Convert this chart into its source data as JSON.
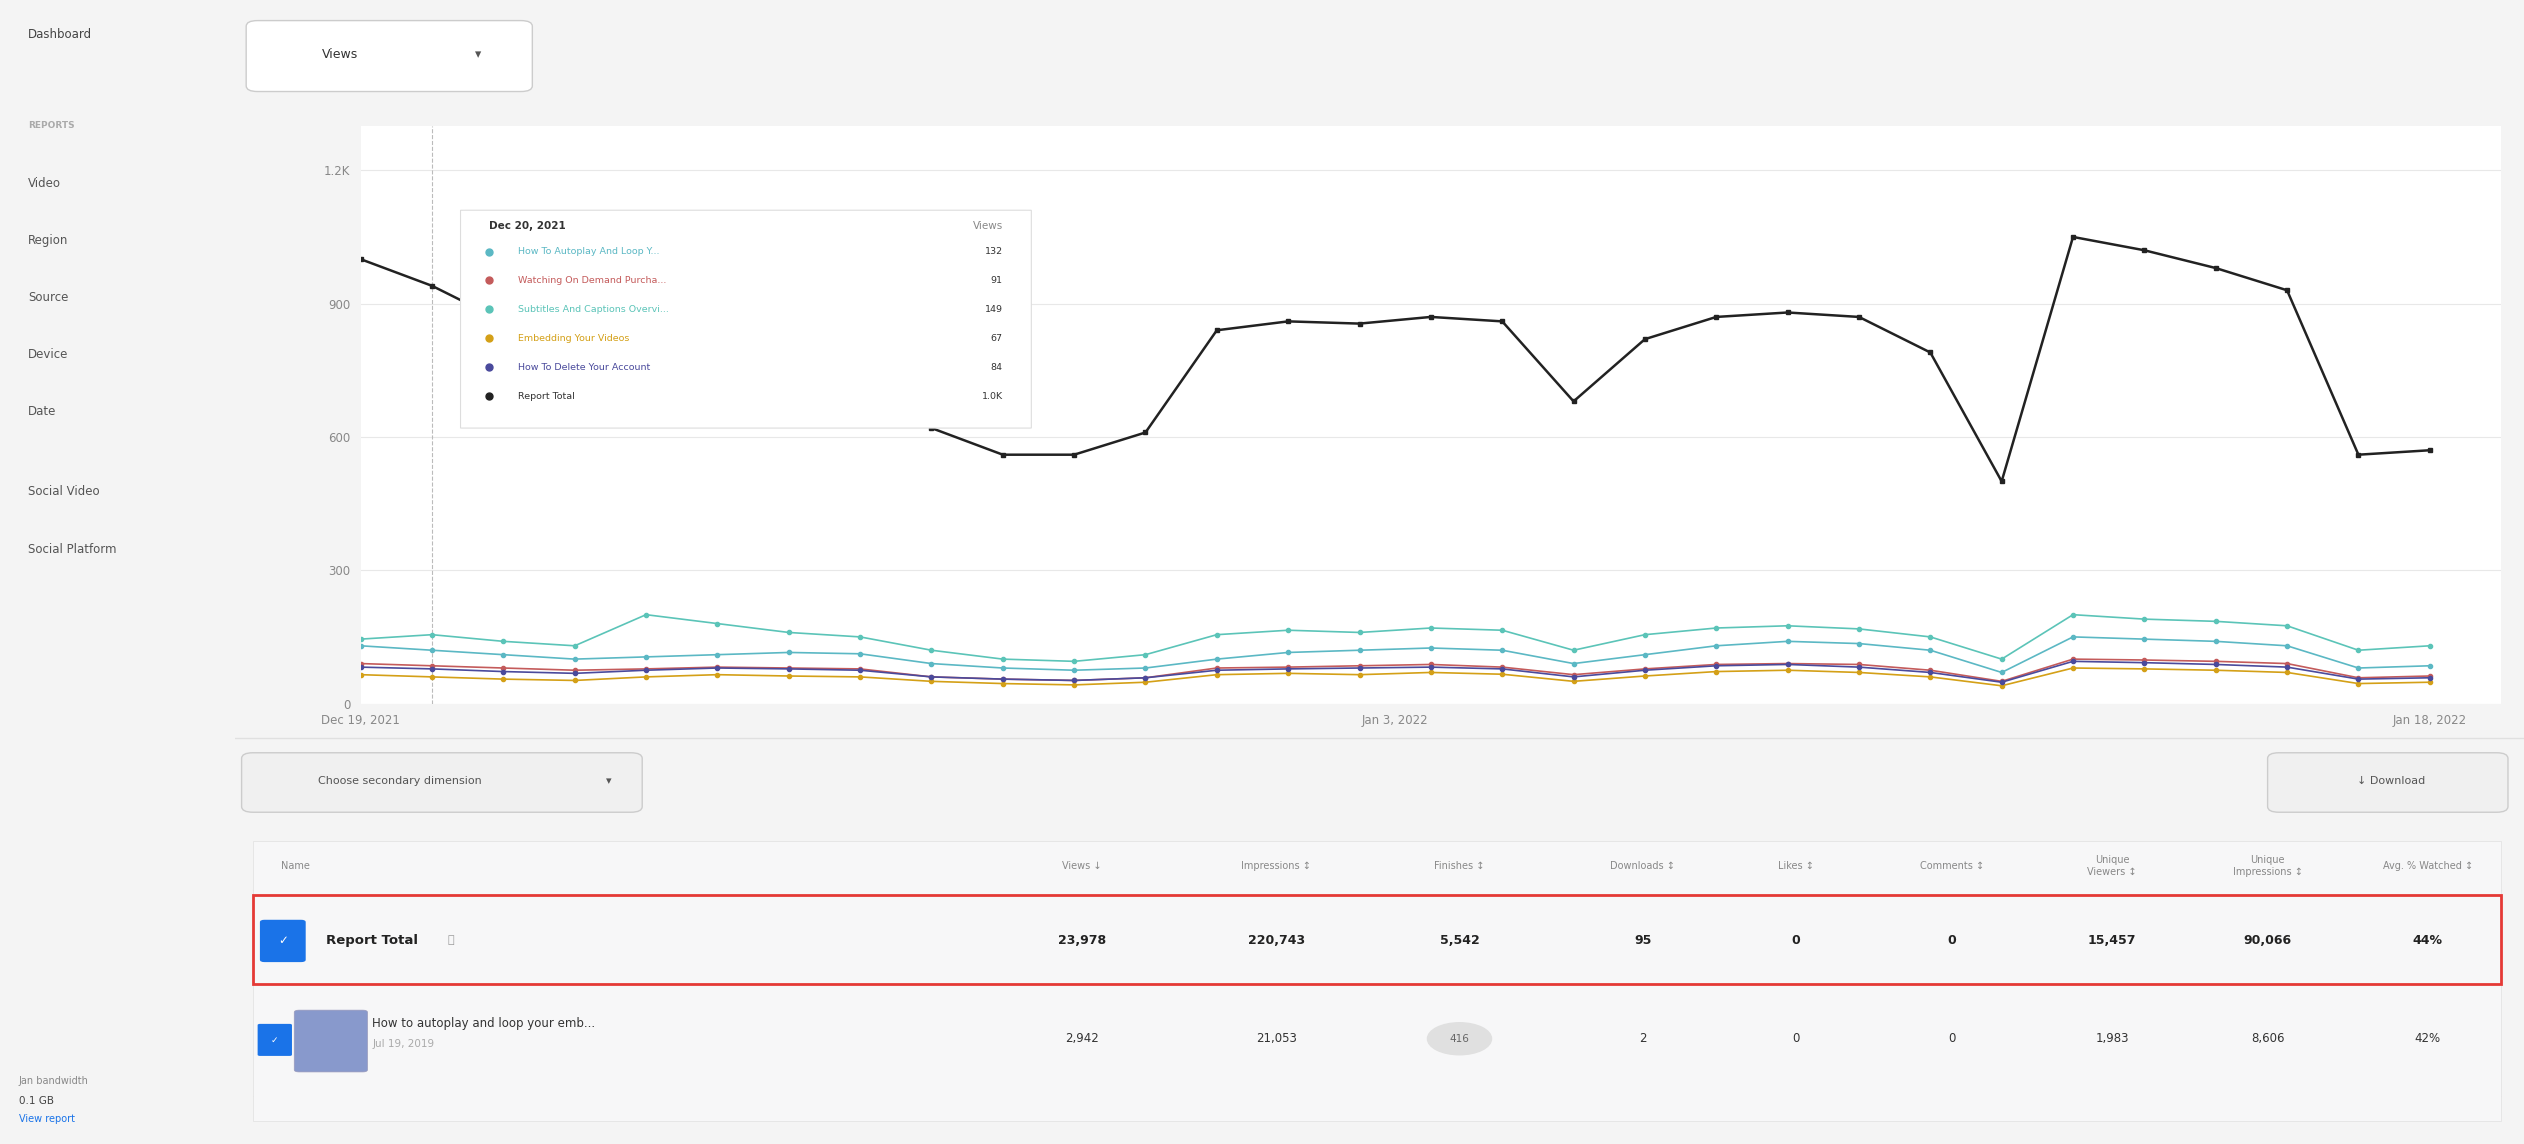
{
  "bg_color": "#f4f4f4",
  "sidebar_items": [
    "Dashboard",
    "REPORTS",
    "Video",
    "Region",
    "Source",
    "Device",
    "Date",
    "Social Video",
    "Social Platform"
  ],
  "views_dropdown": "Views",
  "y_ticks_labels": [
    "0",
    "300",
    "600",
    "900",
    "1.2K"
  ],
  "y_tick_values": [
    0,
    300,
    600,
    900,
    1200
  ],
  "x_labels": [
    "Dec 19, 2021",
    "Jan 3, 2022",
    "Jan 18, 2022"
  ],
  "line_colors": {
    "autoplay": "#5bb8c4",
    "watching": "#c45b5b",
    "subtitles": "#5bc4b8",
    "embedding": "#d4a017",
    "delete": "#4a4a9c",
    "report_total": "#222222"
  },
  "tooltip_date": "Dec 20, 2021",
  "tooltip_col": "Views",
  "tooltip_items": [
    {
      "label": "How To Autoplay And Loop Y...",
      "color": "#5bb8c4",
      "value": "132"
    },
    {
      "label": "Watching On Demand Purcha...",
      "color": "#c45b5b",
      "value": "91"
    },
    {
      "label": "Subtitles And Captions Overvi...",
      "color": "#5bc4b8",
      "value": "149"
    },
    {
      "label": "Embedding Your Videos",
      "color": "#d4a017",
      "value": "67"
    },
    {
      "label": "How To Delete Your Account",
      "color": "#4a4a9c",
      "value": "84"
    },
    {
      "label": "Report Total",
      "color": "#222222",
      "value": "1.0K"
    }
  ],
  "table_headers": [
    "Name",
    "Views ↓",
    "Impressions ↕",
    "Finishes ↕",
    "Downloads ↕",
    "Likes ↕",
    "Comments ↕",
    "Unique\nViewers ↕",
    "Unique\nImpressions ↕",
    "Avg. % Watched ↕"
  ],
  "report_total_row": [
    "Report Total",
    "23,978",
    "220,743",
    "5,542",
    "95",
    "0",
    "0",
    "15,457",
    "90,066",
    "44%"
  ],
  "second_row_name": "How to autoplay and loop your emb...",
  "second_row_date": "Jul 19, 2019",
  "second_row_values": [
    "2,942",
    "21,053",
    "416",
    "2",
    "0",
    "0",
    "1,983",
    "8,606",
    "42%"
  ],
  "jan_bandwidth": "0.1 GB",
  "bottom_left": "Jan bandwidth",
  "view_report": "View report",
  "arrow_color": "#e03030",
  "choose_dim_btn": "Choose secondary dimension",
  "download_btn": "↓ Download"
}
